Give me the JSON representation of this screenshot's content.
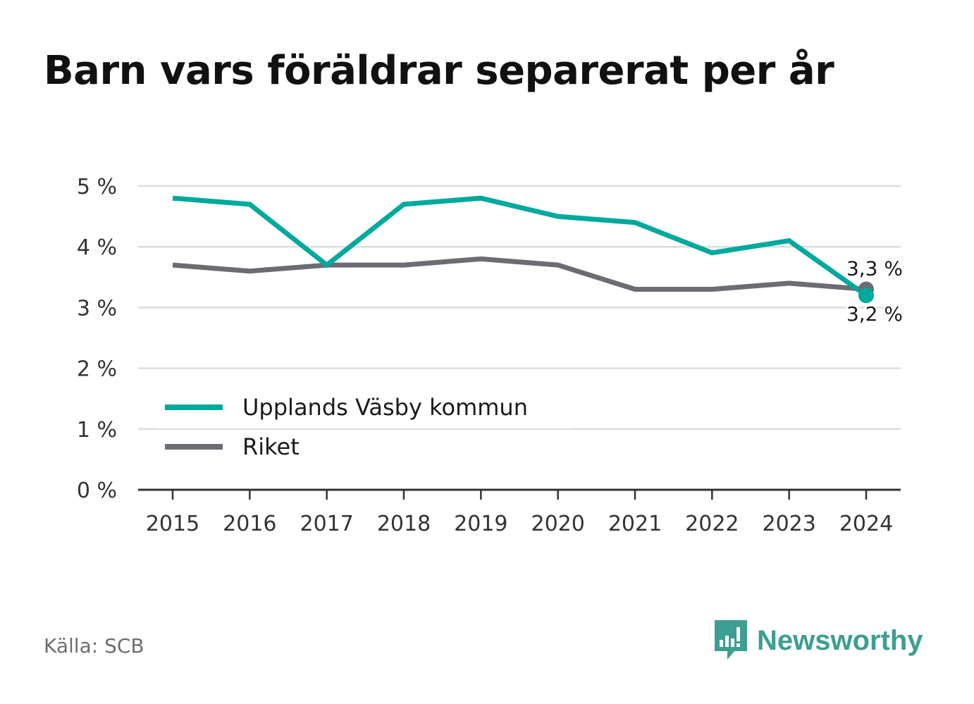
{
  "title": "Barn vars föräldrar separerat per år",
  "source": "Källa: SCB",
  "brand": "Newsworthy",
  "colors": {
    "kommun": "#00a99d",
    "riket": "#6d6b73",
    "brand": "#3d9e91"
  },
  "chart_data": {
    "type": "line",
    "title": "Barn vars föräldrar separerat per år",
    "x": [
      "2015",
      "2016",
      "2017",
      "2018",
      "2019",
      "2020",
      "2021",
      "2022",
      "2023",
      "2024"
    ],
    "series": [
      {
        "name": "Upplands Väsby kommun",
        "values": [
          4.8,
          4.7,
          3.7,
          4.7,
          4.8,
          4.5,
          4.4,
          3.9,
          4.1,
          3.2
        ],
        "end_label": "3,2 %"
      },
      {
        "name": "Riket",
        "values": [
          3.7,
          3.6,
          3.7,
          3.7,
          3.8,
          3.7,
          3.3,
          3.3,
          3.4,
          3.3
        ],
        "end_label": "3,3 %"
      }
    ],
    "y_ticks": [
      "0 %",
      "1 %",
      "2 %",
      "3 %",
      "4 %",
      "5 %"
    ],
    "ylim": [
      0,
      5
    ],
    "grid": true,
    "legend_position": "bottom-left"
  }
}
